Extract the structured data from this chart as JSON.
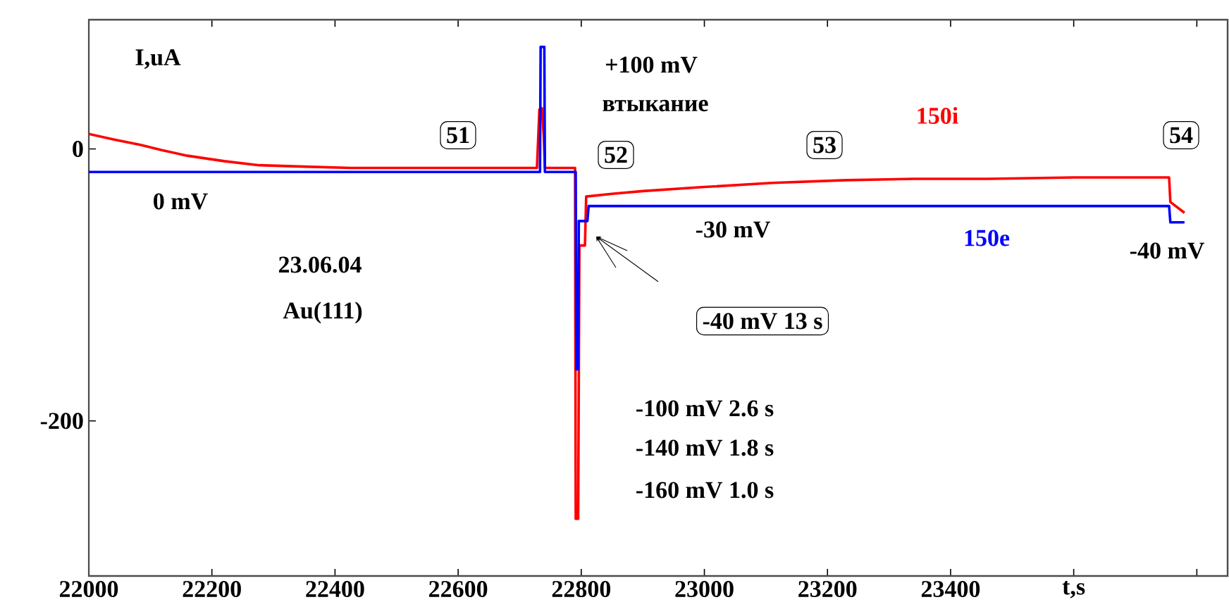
{
  "chart_data": {
    "type": "line",
    "ylabel": "I,uA",
    "xlim": [
      22000,
      23850
    ],
    "ylim": [
      -314,
      95
    ],
    "xticks": [
      22000,
      22200,
      22400,
      22600,
      22800,
      23000,
      23200,
      23400,
      {
        "value": 23600,
        "label": "t,s"
      },
      {
        "value": 23800,
        "label": null
      }
    ],
    "yticks": [
      -200,
      0
    ],
    "series": [
      {
        "name": "150i",
        "color": "#ff0000",
        "x": [
          22000,
          22040,
          22084,
          22120,
          22160,
          22220,
          22277,
          22350,
          22426,
          22550,
          22728,
          22732,
          22736,
          22739,
          22741,
          22790,
          22791,
          22795,
          22797,
          22806,
          22808,
          22850,
          22900,
          23000,
          23110,
          23230,
          23340,
          23460,
          23600,
          23755,
          23757,
          23780
        ],
        "values": [
          11,
          7,
          3,
          -1,
          -5,
          -9,
          -12,
          -13,
          -14,
          -14,
          -14,
          29,
          30,
          10,
          -14,
          -14,
          -272,
          -272,
          -71,
          -71,
          -35,
          -33,
          -31,
          -28,
          -25,
          -23,
          -22,
          -22,
          -21,
          -21,
          -39,
          -47
        ]
      },
      {
        "name": "150e",
        "color": "#0000ff",
        "x": [
          22000,
          22733,
          22734,
          22740,
          22741,
          22791,
          22792,
          22795,
          22796,
          22810,
          22812,
          23755,
          23757,
          23780
        ],
        "values": [
          -17,
          -17,
          75,
          75,
          -17,
          -17,
          -162,
          -162,
          -53,
          -53,
          -42,
          -42,
          -54,
          -54
        ]
      }
    ],
    "annotations": [
      "0 mV",
      "23.06.04",
      "Au(111)",
      "51",
      "52",
      "53",
      "54",
      "+100 mV",
      "втыкание",
      "-30 mV",
      "-40 mV",
      "-40 mV 13 s",
      "-100 mV 2.6 s",
      "-140 mV 1.8 s",
      "-160 mV 1.0 s"
    ]
  }
}
